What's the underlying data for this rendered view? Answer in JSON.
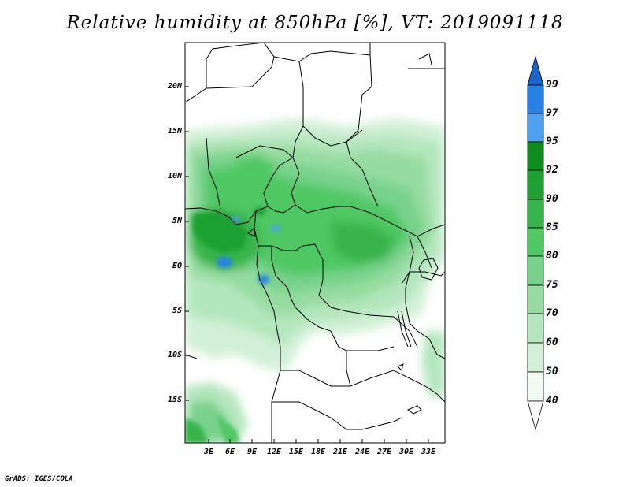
{
  "title": "Relative humidity at 850hPa [%], VT: 2019091118",
  "footer": "GrADS: IGES/COLA",
  "map": {
    "lat_ticks": [
      "20N",
      "15N",
      "10N",
      "5N",
      "EQ",
      "5S",
      "10S",
      "15S"
    ],
    "lon_ticks": [
      "3E",
      "6E",
      "9E",
      "12E",
      "15E",
      "18E",
      "21E",
      "24E",
      "27E",
      "30E",
      "33E"
    ]
  },
  "colorbar": {
    "levels": [
      "99",
      "97",
      "95",
      "92",
      "90",
      "85",
      "80",
      "75",
      "70",
      "60",
      "50",
      "40"
    ],
    "colors": [
      "#1e64c8",
      "#2882e6",
      "#50a0f0",
      "#0f8c1e",
      "#1ea032",
      "#37b44b",
      "#50c864",
      "#78d28c",
      "#96dca0",
      "#b4e6be",
      "#d2f0d7",
      "#f0faf2"
    ]
  }
}
